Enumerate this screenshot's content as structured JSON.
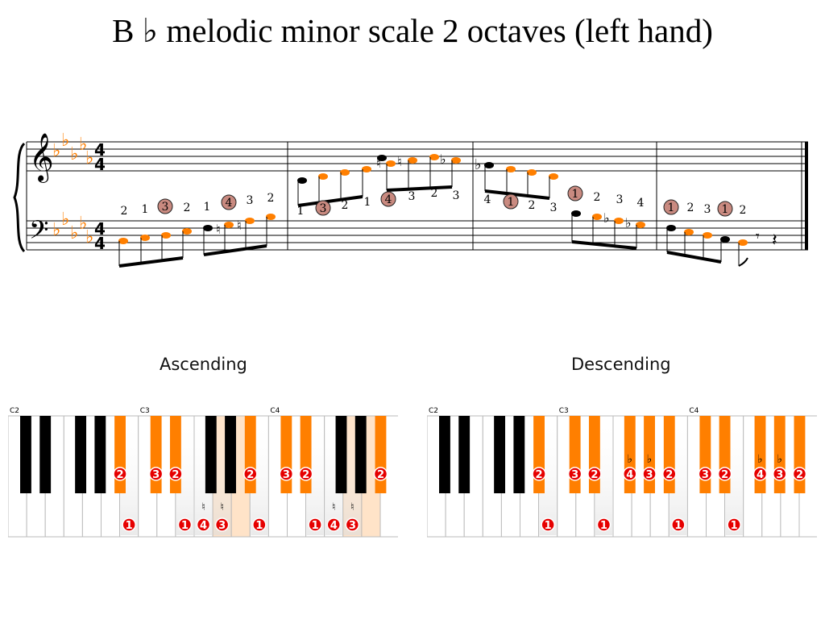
{
  "title": "B ♭  melodic minor scale 2 octaves (left hand)",
  "colors": {
    "highlight": "#ff7f00",
    "finger_red": "#e60000",
    "finger_circle": "#c98a80",
    "black_key": "#000000"
  },
  "score": {
    "key_signature_flats": 5,
    "time_signature": [
      "4",
      "4"
    ],
    "measures": [
      {
        "fingerings_above_bass": [
          "2",
          "1",
          "3",
          "2",
          "1",
          "4",
          "3",
          "2"
        ],
        "circled": [
          false,
          false,
          true,
          false,
          false,
          true,
          false,
          false
        ]
      },
      {
        "fingerings_below_treble": [
          "1",
          "3",
          "2",
          "1",
          "4",
          "3",
          "2",
          "3"
        ],
        "circled": [
          false,
          true,
          false,
          false,
          true,
          false,
          false,
          false
        ]
      },
      {
        "fingerings": [
          "4",
          "1",
          "2",
          "3",
          "1",
          "2",
          "3",
          "4"
        ],
        "circled": [
          false,
          true,
          false,
          false,
          true,
          false,
          false,
          false
        ]
      },
      {
        "fingerings": [
          "1",
          "2",
          "3",
          "1",
          "2"
        ],
        "circled": [
          true,
          false,
          false,
          true,
          false
        ]
      }
    ]
  },
  "keyboards": {
    "octave_labels": [
      "C2",
      "C3",
      "C4"
    ],
    "ascending": {
      "label": "Ascending",
      "white_fingers": [
        {
          "key": 7,
          "finger": "1",
          "accidental": ""
        },
        {
          "key": 10,
          "finger": "1",
          "accidental": ""
        },
        {
          "key": 11,
          "finger": "4",
          "accidental": "♮",
          "highlighted": true
        },
        {
          "key": 12,
          "finger": "3",
          "accidental": "♮",
          "highlighted": true
        },
        {
          "key": 14,
          "finger": "1",
          "accidental": ""
        },
        {
          "key": 17,
          "finger": "1",
          "accidental": ""
        },
        {
          "key": 18,
          "finger": "4",
          "accidental": "♮",
          "highlighted": true
        },
        {
          "key": 19,
          "finger": "3",
          "accidental": "♮",
          "highlighted": true
        }
      ],
      "black_fingers": [
        {
          "key": "A#2",
          "finger": "2",
          "highlighted": true
        },
        {
          "key": "C#3",
          "finger": "3",
          "highlighted": true
        },
        {
          "key": "D#3",
          "finger": "2",
          "highlighted": true
        },
        {
          "key": "A#3",
          "finger": "2",
          "highlighted": true
        },
        {
          "key": "C#4",
          "finger": "3",
          "highlighted": true
        },
        {
          "key": "D#4",
          "finger": "2",
          "highlighted": true
        },
        {
          "key": "A#4",
          "finger": "2",
          "highlighted": true
        }
      ]
    },
    "descending": {
      "label": "Descending",
      "white_fingers": [
        {
          "key": 7,
          "finger": "1",
          "accidental": ""
        },
        {
          "key": 10,
          "finger": "1",
          "accidental": ""
        },
        {
          "key": 14,
          "finger": "1",
          "accidental": ""
        },
        {
          "key": 17,
          "finger": "1",
          "accidental": ""
        }
      ],
      "black_fingers": [
        {
          "key": "A#2",
          "finger": "2",
          "accidental": ""
        },
        {
          "key": "C#3",
          "finger": "3",
          "accidental": ""
        },
        {
          "key": "D#3",
          "finger": "2",
          "accidental": ""
        },
        {
          "key": "F#3",
          "finger": "4",
          "accidental": "♭"
        },
        {
          "key": "G#3",
          "finger": "3",
          "accidental": "♭"
        },
        {
          "key": "A#3",
          "finger": "2",
          "accidental": ""
        },
        {
          "key": "C#4",
          "finger": "3",
          "accidental": ""
        },
        {
          "key": "D#4",
          "finger": "2",
          "accidental": ""
        },
        {
          "key": "F#4",
          "finger": "4",
          "accidental": "♭"
        },
        {
          "key": "G#4",
          "finger": "3",
          "accidental": "♭"
        },
        {
          "key": "A#4",
          "finger": "2",
          "accidental": ""
        }
      ]
    }
  }
}
